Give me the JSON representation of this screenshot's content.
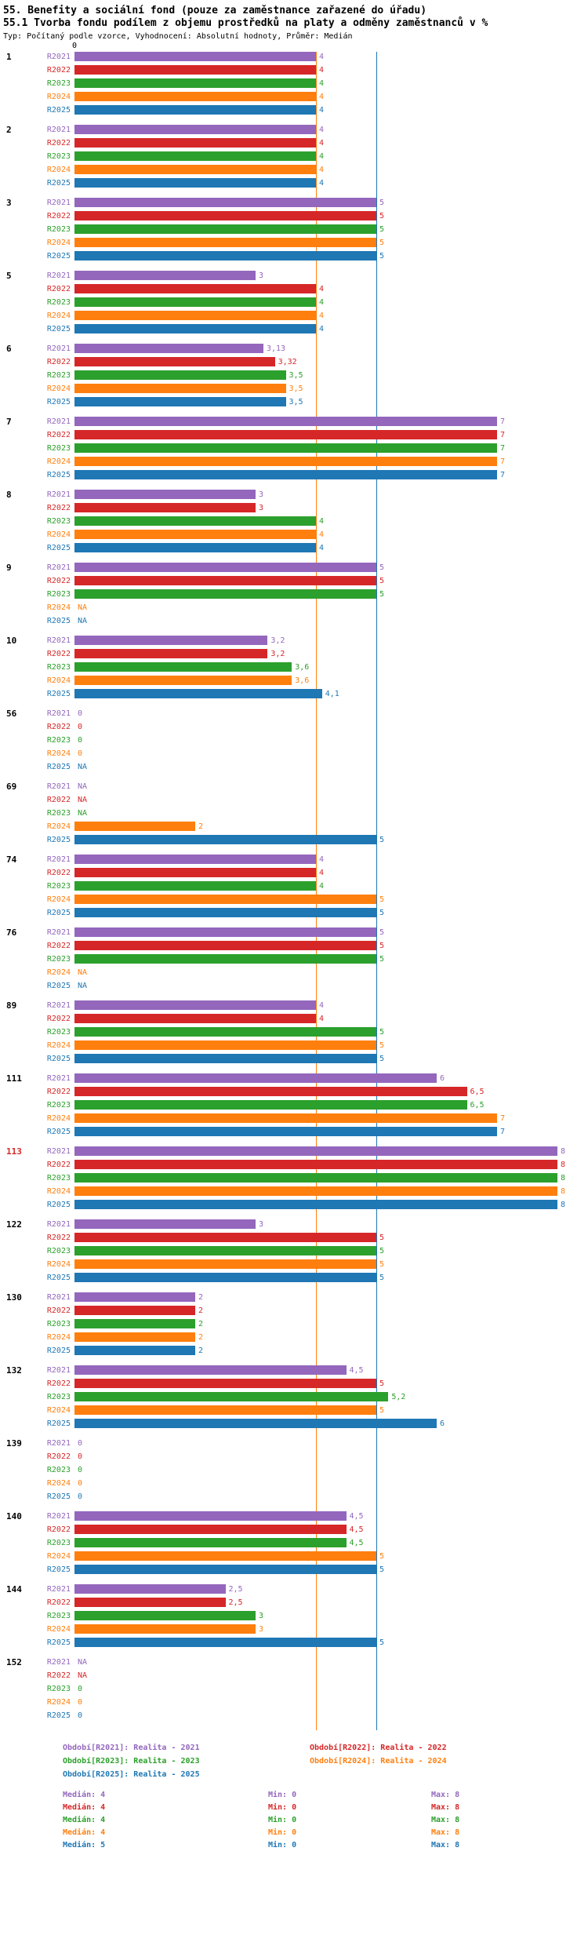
{
  "header": {
    "title": "55. Benefity a sociální fond (pouze za zaměstnance zařazené do úřadu)",
    "subtitle": "55.1 Tvorba fondu podílem z objemu prostředků na platy a odměny zaměstnanců v %",
    "meta": "Typ: Počítaný podle vzorce, Vyhodnocení: Absolutní hodnoty, Průměr: Medián"
  },
  "chart_data": {
    "type": "bar",
    "orientation": "horizontal",
    "title": "55.1 Tvorba fondu podílem z objemu prostředků na platy a odměny zaměstnanců v %",
    "axis": {
      "min": 0,
      "max": 8.5,
      "zero_label": "0",
      "grid": false
    },
    "series": [
      "R2021",
      "R2022",
      "R2023",
      "R2024",
      "R2025"
    ],
    "colors": {
      "R2021": "#9467bd",
      "R2022": "#d62728",
      "R2023": "#2ca02c",
      "R2024": "#ff7f0e",
      "R2025": "#1f77b4"
    },
    "reference_lines": [
      {
        "value": 4,
        "color": "#ff7f0e"
      },
      {
        "value": 5,
        "color": "#1f77b4"
      }
    ],
    "groups": [
      {
        "id": "1",
        "id_color": "#000000",
        "values": [
          4,
          4,
          4,
          4,
          4
        ],
        "labels": [
          "4",
          "4",
          "4",
          "4",
          "4"
        ]
      },
      {
        "id": "2",
        "id_color": "#000000",
        "values": [
          4,
          4,
          4,
          4,
          4
        ],
        "labels": [
          "4",
          "4",
          "4",
          "4",
          "4"
        ]
      },
      {
        "id": "3",
        "id_color": "#000000",
        "values": [
          5,
          5,
          5,
          5,
          5
        ],
        "labels": [
          "5",
          "5",
          "5",
          "5",
          "5"
        ]
      },
      {
        "id": "5",
        "id_color": "#000000",
        "values": [
          3,
          4,
          4,
          4,
          4
        ],
        "labels": [
          "3",
          "4",
          "4",
          "4",
          "4"
        ]
      },
      {
        "id": "6",
        "id_color": "#000000",
        "values": [
          3.13,
          3.32,
          3.5,
          3.5,
          3.5
        ],
        "labels": [
          "3,13",
          "3,32",
          "3,5",
          "3,5",
          "3,5"
        ]
      },
      {
        "id": "7",
        "id_color": "#000000",
        "values": [
          7,
          7,
          7,
          7,
          7
        ],
        "labels": [
          "7",
          "7",
          "7",
          "7",
          "7"
        ]
      },
      {
        "id": "8",
        "id_color": "#000000",
        "values": [
          3,
          3,
          4,
          4,
          4
        ],
        "labels": [
          "3",
          "3",
          "4",
          "4",
          "4"
        ]
      },
      {
        "id": "9",
        "id_color": "#000000",
        "values": [
          5,
          5,
          5,
          null,
          null
        ],
        "labels": [
          "5",
          "5",
          "5",
          "NA",
          "NA"
        ]
      },
      {
        "id": "10",
        "id_color": "#000000",
        "values": [
          3.2,
          3.2,
          3.6,
          3.6,
          4.1
        ],
        "labels": [
          "3,2",
          "3,2",
          "3,6",
          "3,6",
          "4,1"
        ]
      },
      {
        "id": "56",
        "id_color": "#000000",
        "values": [
          0,
          0,
          0,
          0,
          null
        ],
        "labels": [
          "0",
          "0",
          "0",
          "0",
          "NA"
        ]
      },
      {
        "id": "69",
        "id_color": "#000000",
        "values": [
          null,
          null,
          null,
          2,
          5
        ],
        "labels": [
          "NA",
          "NA",
          "NA",
          "2",
          "5"
        ]
      },
      {
        "id": "74",
        "id_color": "#000000",
        "values": [
          4,
          4,
          4,
          5,
          5
        ],
        "labels": [
          "4",
          "4",
          "4",
          "5",
          "5"
        ]
      },
      {
        "id": "76",
        "id_color": "#000000",
        "values": [
          5,
          5,
          5,
          null,
          null
        ],
        "labels": [
          "5",
          "5",
          "5",
          "NA",
          "NA"
        ]
      },
      {
        "id": "89",
        "id_color": "#000000",
        "values": [
          4,
          4,
          5,
          5,
          5
        ],
        "labels": [
          "4",
          "4",
          "5",
          "5",
          "5"
        ]
      },
      {
        "id": "111",
        "id_color": "#000000",
        "values": [
          6,
          6.5,
          6.5,
          7,
          7
        ],
        "labels": [
          "6",
          "6,5",
          "6,5",
          "7",
          "7"
        ]
      },
      {
        "id": "113",
        "id_color": "#d62728",
        "values": [
          8,
          8,
          8,
          8,
          8
        ],
        "labels": [
          "8",
          "8",
          "8",
          "8",
          "8"
        ]
      },
      {
        "id": "122",
        "id_color": "#000000",
        "values": [
          3,
          5,
          5,
          5,
          5
        ],
        "labels": [
          "3",
          "5",
          "5",
          "5",
          "5"
        ]
      },
      {
        "id": "130",
        "id_color": "#000000",
        "values": [
          2,
          2,
          2,
          2,
          2
        ],
        "labels": [
          "2",
          "2",
          "2",
          "2",
          "2"
        ]
      },
      {
        "id": "132",
        "id_color": "#000000",
        "values": [
          4.5,
          5,
          5.2,
          5,
          6
        ],
        "labels": [
          "4,5",
          "5",
          "5,2",
          "5",
          "6"
        ]
      },
      {
        "id": "139",
        "id_color": "#000000",
        "values": [
          0,
          0,
          0,
          0,
          0
        ],
        "labels": [
          "0",
          "0",
          "0",
          "0",
          "0"
        ]
      },
      {
        "id": "140",
        "id_color": "#000000",
        "values": [
          4.5,
          4.5,
          4.5,
          5,
          5
        ],
        "labels": [
          "4,5",
          "4,5",
          "4,5",
          "5",
          "5"
        ]
      },
      {
        "id": "144",
        "id_color": "#000000",
        "values": [
          2.5,
          2.5,
          3,
          3,
          5
        ],
        "labels": [
          "2,5",
          "2,5",
          "3",
          "3",
          "5"
        ]
      },
      {
        "id": "152",
        "id_color": "#000000",
        "values": [
          null,
          null,
          0,
          0,
          0
        ],
        "labels": [
          "NA",
          "NA",
          "0",
          "0",
          "0"
        ]
      }
    ],
    "legend": {
      "left": [
        {
          "text": "Období[R2021]: Realita - 2021",
          "color": "#9467bd"
        },
        {
          "text": "Období[R2023]: Realita - 2023",
          "color": "#2ca02c"
        },
        {
          "text": "Období[R2025]: Realita - 2025",
          "color": "#1f77b4"
        }
      ],
      "right": [
        {
          "text": "Období[R2022]: Realita - 2022",
          "color": "#d62728"
        },
        {
          "text": "Období[R2024]: Realita - 2024",
          "color": "#ff7f0e"
        }
      ]
    },
    "stats": [
      {
        "median": "Medián: 4",
        "min": "Min: 0",
        "max": "Max: 8",
        "color": "#9467bd"
      },
      {
        "median": "Medián: 4",
        "min": "Min: 0",
        "max": "Max: 8",
        "color": "#d62728"
      },
      {
        "median": "Medián: 4",
        "min": "Min: 0",
        "max": "Max: 8",
        "color": "#2ca02c"
      },
      {
        "median": "Medián: 4",
        "min": "Min: 0",
        "max": "Max: 8",
        "color": "#ff7f0e"
      },
      {
        "median": "Medián: 5",
        "min": "Min: 0",
        "max": "Max: 8",
        "color": "#1f77b4"
      }
    ]
  }
}
